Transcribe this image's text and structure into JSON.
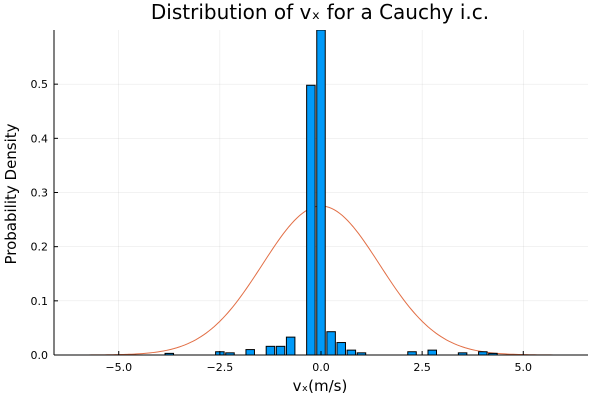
{
  "chart_data": {
    "type": "bar",
    "title": "Distribution of vₓ for a Cauchy i.c.",
    "xlabel": "vₓ(m/s)",
    "ylabel": "Probability Density",
    "xlim": [
      -6.6,
      6.6
    ],
    "ylim": [
      0,
      0.6
    ],
    "xticks": [
      {
        "value": -5,
        "label": "−5.0"
      },
      {
        "value": -2.5,
        "label": "−2.5"
      },
      {
        "value": 0,
        "label": "0.0"
      },
      {
        "value": 2.5,
        "label": "2.5"
      },
      {
        "value": 5,
        "label": "5.0"
      }
    ],
    "yticks": [
      {
        "value": 0,
        "label": "0.0"
      },
      {
        "value": 0.1,
        "label": "0.1"
      },
      {
        "value": 0.2,
        "label": "0.2"
      },
      {
        "value": 0.3,
        "label": "0.3"
      },
      {
        "value": 0.4,
        "label": "0.4"
      },
      {
        "value": 0.5,
        "label": "0.5"
      }
    ],
    "grid": true,
    "legend": "none",
    "bar_width": 0.25,
    "histogram": [
      {
        "x": -3.75,
        "y": 0.003
      },
      {
        "x": -2.5,
        "y": 0.006
      },
      {
        "x": -2.25,
        "y": 0.004
      },
      {
        "x": -1.75,
        "y": 0.01
      },
      {
        "x": -1.25,
        "y": 0.016
      },
      {
        "x": -1.0,
        "y": 0.016
      },
      {
        "x": -0.75,
        "y": 0.033
      },
      {
        "x": -0.25,
        "y": 0.498
      },
      {
        "x": 0.0,
        "y": 0.6
      },
      {
        "x": 0.25,
        "y": 0.043
      },
      {
        "x": 0.5,
        "y": 0.023
      },
      {
        "x": 0.75,
        "y": 0.009
      },
      {
        "x": 1.0,
        "y": 0.004
      },
      {
        "x": 2.25,
        "y": 0.006
      },
      {
        "x": 2.75,
        "y": 0.009
      },
      {
        "x": 3.5,
        "y": 0.004
      },
      {
        "x": 4.0,
        "y": 0.006
      },
      {
        "x": 4.25,
        "y": 0.003
      }
    ],
    "curve": {
      "type": "line",
      "shape": "gaussian",
      "mean": 0,
      "std": 1.45,
      "x_range": [
        -6.6,
        6.6
      ]
    },
    "colors": {
      "bars": "#009af9",
      "curve": "#e26f46"
    }
  }
}
